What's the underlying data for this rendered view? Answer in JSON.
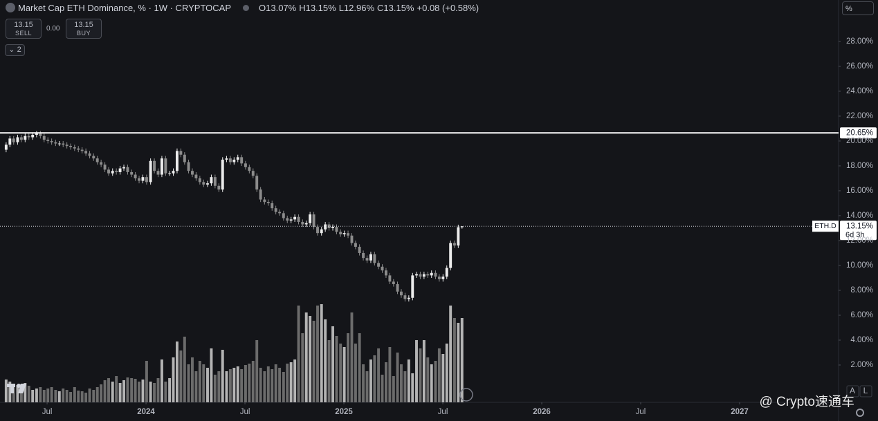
{
  "chart_data": {
    "type": "candlestick",
    "title": "Market Cap ETH Dominance, % · 1W · CRYPTOCAP",
    "ohlc": [
      "O13.07%",
      "H13.15%",
      "L12.96%",
      "C13.15%",
      "+0.08 (+0.58%)"
    ],
    "sell_price": "13.15",
    "sell_label": "SELL",
    "spread": "0.00",
    "buy_price": "13.15",
    "buy_label": "BUY",
    "indicators_count": "2",
    "scale_mode": "%",
    "scale_buttons": [
      "A",
      "L"
    ],
    "watermark": "@ Crypto速通车",
    "up_color": "#ececec",
    "down_color": "#8c8c8c",
    "volume_up_color": "#b4b4b4",
    "volume_down_color": "#6c6c6c",
    "xlim": [
      2023.262,
      2027.5
    ],
    "ylim": [
      -1.0,
      31.33
    ],
    "xticks": [
      {
        "value": 2023.5,
        "label": "Jul"
      },
      2024,
      {
        "value": 2024.5,
        "label": "Jul"
      },
      2025,
      {
        "value": 2025.5,
        "label": "Jul"
      },
      2026,
      {
        "value": 2026.5,
        "label": "Jul"
      },
      2027
    ],
    "yticks": [
      {
        "value": 2,
        "label": "2.00%"
      },
      {
        "value": 4,
        "label": "4.00%"
      },
      {
        "value": 6,
        "label": "6.00%"
      },
      {
        "value": 8,
        "label": "8.00%"
      },
      {
        "value": 10,
        "label": "10.00%"
      },
      {
        "value": 12,
        "label": "12.00%"
      },
      {
        "value": 14,
        "label": "14.00%"
      },
      {
        "value": 16,
        "label": "16.00%"
      },
      {
        "value": 18,
        "label": "18.00%"
      },
      {
        "value": 20,
        "label": "20.00%"
      },
      {
        "value": 22,
        "label": "22.00%"
      },
      {
        "value": 24,
        "label": "24.00%"
      },
      {
        "value": 26,
        "label": "26.00%"
      },
      {
        "value": 28,
        "label": "28.00%"
      }
    ],
    "hlines": [
      {
        "value": 20.65,
        "label": "20.65%",
        "color": "#ffffff"
      }
    ],
    "last": {
      "symbol": "ETH.D",
      "value": 13.15,
      "label": "13.15%",
      "countdown": "6d 3h"
    },
    "x": [
      2023.293,
      2023.312,
      2023.331,
      2023.351,
      2023.37,
      2023.389,
      2023.408,
      2023.427,
      2023.447,
      2023.466,
      2023.485,
      2023.504,
      2023.523,
      2023.543,
      2023.562,
      2023.581,
      2023.6,
      2023.619,
      2023.639,
      2023.658,
      2023.677,
      2023.696,
      2023.715,
      2023.735,
      2023.754,
      2023.773,
      2023.792,
      2023.811,
      2023.831,
      2023.85,
      2023.869,
      2023.888,
      2023.907,
      2023.927,
      2023.946,
      2023.965,
      2023.984,
      2024.003,
      2024.023,
      2024.042,
      2024.061,
      2024.08,
      2024.099,
      2024.119,
      2024.138,
      2024.157,
      2024.176,
      2024.195,
      2024.215,
      2024.234,
      2024.253,
      2024.272,
      2024.291,
      2024.311,
      2024.33,
      2024.349,
      2024.368,
      2024.387,
      2024.407,
      2024.426,
      2024.445,
      2024.464,
      2024.483,
      2024.503,
      2024.522,
      2024.541,
      2024.56,
      2024.579,
      2024.599,
      2024.618,
      2024.637,
      2024.656,
      2024.675,
      2024.695,
      2024.714,
      2024.733,
      2024.752,
      2024.771,
      2024.791,
      2024.81,
      2024.829,
      2024.848,
      2024.867,
      2024.887,
      2024.906,
      2024.925,
      2024.944,
      2024.963,
      2024.983,
      2025.002,
      2025.021,
      2025.04,
      2025.059,
      2025.079,
      2025.098,
      2025.117,
      2025.136,
      2025.155,
      2025.175,
      2025.194,
      2025.213,
      2025.232,
      2025.251,
      2025.271,
      2025.29,
      2025.309,
      2025.328,
      2025.347,
      2025.367,
      2025.386,
      2025.405,
      2025.424,
      2025.443,
      2025.463,
      2025.482,
      2025.501,
      2025.52,
      2025.539,
      2025.559,
      2025.578,
      2025.597
    ],
    "open": [
      19.3,
      19.7,
      20.2,
      19.9,
      20.3,
      20.1,
      20.4,
      20.3,
      20.5,
      20.6,
      20.4,
      20.1,
      20.0,
      19.9,
      19.8,
      19.8,
      19.7,
      19.6,
      19.5,
      19.4,
      19.3,
      19.2,
      19.0,
      18.8,
      18.6,
      18.3,
      18.1,
      17.7,
      17.4,
      17.6,
      17.5,
      17.8,
      17.9,
      17.5,
      17.3,
      17.0,
      16.8,
      17.1,
      16.7,
      18.4,
      17.6,
      17.3,
      18.6,
      17.4,
      17.4,
      17.6,
      19.2,
      18.9,
      18.3,
      17.6,
      17.3,
      17.0,
      16.7,
      16.5,
      16.6,
      17.1,
      16.4,
      16.1,
      18.5,
      18.6,
      18.3,
      18.5,
      18.7,
      18.2,
      17.9,
      17.6,
      17.2,
      16.1,
      15.3,
      15.1,
      15.0,
      14.6,
      14.3,
      14.2,
      13.8,
      13.6,
      13.7,
      13.9,
      13.5,
      13.3,
      13.4,
      14.1,
      13.1,
      12.6,
      12.9,
      13.3,
      13.0,
      13.1,
      12.7,
      12.5,
      12.6,
      12.4,
      11.8,
      11.5,
      11.0,
      10.6,
      10.4,
      10.9,
      10.2,
      9.9,
      9.6,
      9.2,
      8.7,
      8.5,
      7.9,
      7.6,
      7.3,
      7.4,
      9.2,
      9.3,
      9.1,
      9.3,
      9.2,
      9.4,
      9.1,
      8.9,
      9.1,
      9.8,
      11.8,
      11.6,
      13.07
    ],
    "high": [
      19.9,
      20.4,
      20.4,
      20.5,
      20.5,
      20.6,
      20.6,
      20.7,
      20.8,
      20.8,
      20.6,
      20.3,
      20.2,
      20.1,
      20.0,
      20.0,
      19.9,
      19.8,
      19.7,
      19.6,
      19.5,
      19.4,
      19.2,
      19.0,
      18.8,
      18.5,
      18.3,
      17.9,
      17.8,
      17.8,
      18.0,
      18.1,
      18.1,
      17.7,
      17.5,
      17.2,
      17.3,
      17.3,
      18.6,
      18.6,
      17.8,
      18.8,
      18.8,
      17.6,
      17.8,
      19.4,
      19.4,
      19.1,
      18.5,
      17.8,
      17.5,
      17.2,
      16.9,
      16.8,
      17.3,
      17.3,
      16.6,
      18.7,
      18.8,
      18.8,
      18.7,
      18.9,
      18.9,
      18.4,
      18.1,
      17.8,
      17.4,
      16.3,
      15.5,
      15.3,
      15.2,
      14.8,
      14.5,
      14.4,
      14.0,
      13.9,
      14.1,
      14.1,
      13.7,
      13.6,
      14.3,
      14.3,
      13.3,
      13.1,
      13.5,
      13.5,
      13.3,
      13.3,
      12.9,
      12.8,
      12.8,
      12.6,
      12.0,
      11.7,
      11.2,
      10.8,
      11.1,
      11.1,
      10.4,
      10.1,
      9.8,
      9.4,
      8.9,
      8.7,
      8.1,
      7.8,
      7.6,
      9.4,
      9.5,
      9.5,
      9.5,
      9.5,
      9.6,
      9.6,
      9.3,
      9.3,
      10.0,
      12.0,
      12.0,
      13.27,
      13.15
    ],
    "low": [
      19.1,
      19.5,
      19.7,
      19.7,
      19.9,
      19.9,
      20.1,
      20.1,
      20.3,
      20.2,
      19.9,
      19.8,
      19.7,
      19.6,
      19.6,
      19.5,
      19.4,
      19.3,
      19.2,
      19.1,
      19.0,
      18.8,
      18.6,
      18.4,
      18.1,
      17.9,
      17.5,
      17.2,
      17.2,
      17.3,
      17.3,
      17.6,
      17.3,
      17.1,
      16.8,
      16.6,
      16.6,
      16.5,
      16.5,
      17.4,
      17.1,
      17.1,
      17.2,
      17.2,
      17.2,
      17.4,
      18.7,
      18.1,
      17.4,
      17.1,
      16.8,
      16.5,
      16.3,
      16.3,
      16.4,
      16.2,
      15.9,
      15.9,
      18.3,
      18.1,
      18.1,
      18.3,
      18.0,
      17.7,
      17.4,
      17.0,
      15.9,
      15.1,
      14.9,
      14.8,
      14.4,
      14.1,
      14.0,
      13.6,
      13.4,
      13.4,
      13.5,
      13.3,
      13.1,
      13.1,
      13.2,
      12.9,
      12.4,
      12.4,
      12.7,
      12.8,
      12.8,
      12.5,
      12.3,
      12.3,
      12.2,
      11.6,
      11.3,
      10.8,
      10.4,
      10.2,
      10.2,
      10.0,
      9.7,
      9.4,
      9.0,
      8.5,
      8.3,
      7.7,
      7.4,
      7.1,
      7.1,
      7.2,
      9.0,
      8.9,
      8.9,
      9.0,
      9.0,
      8.9,
      8.7,
      8.7,
      8.9,
      9.6,
      11.4,
      11.4,
      12.96
    ],
    "close": [
      19.7,
      20.2,
      19.9,
      20.3,
      20.1,
      20.4,
      20.3,
      20.5,
      20.6,
      20.4,
      20.1,
      20.0,
      19.9,
      19.8,
      19.8,
      19.7,
      19.6,
      19.5,
      19.4,
      19.3,
      19.2,
      19.0,
      18.8,
      18.6,
      18.3,
      18.1,
      17.7,
      17.4,
      17.6,
      17.5,
      17.8,
      17.9,
      17.5,
      17.3,
      17.0,
      16.8,
      17.1,
      16.7,
      18.4,
      17.6,
      17.3,
      18.6,
      17.4,
      17.4,
      17.6,
      19.2,
      18.9,
      18.3,
      17.6,
      17.3,
      17.0,
      16.7,
      16.5,
      16.6,
      17.1,
      16.4,
      16.1,
      18.5,
      18.6,
      18.3,
      18.5,
      18.7,
      18.2,
      17.9,
      17.6,
      17.2,
      16.1,
      15.3,
      15.1,
      15.0,
      14.6,
      14.3,
      14.2,
      13.8,
      13.6,
      13.7,
      13.9,
      13.5,
      13.3,
      13.4,
      14.1,
      13.1,
      12.6,
      12.9,
      13.3,
      13.0,
      13.1,
      12.7,
      12.5,
      12.6,
      12.4,
      11.8,
      11.5,
      11.0,
      10.6,
      10.4,
      10.9,
      10.2,
      9.9,
      9.6,
      9.2,
      8.7,
      8.5,
      7.9,
      7.6,
      7.3,
      7.4,
      9.2,
      9.3,
      9.1,
      9.3,
      9.2,
      9.4,
      9.1,
      8.9,
      9.1,
      9.8,
      11.8,
      11.6,
      13.07,
      13.15
    ],
    "volume": [
      33,
      30,
      22,
      25,
      26,
      28,
      24,
      18,
      20,
      22,
      18,
      20,
      22,
      18,
      16,
      20,
      18,
      15,
      22,
      17,
      16,
      14,
      20,
      18,
      22,
      26,
      32,
      35,
      30,
      38,
      28,
      32,
      36,
      35,
      34,
      30,
      33,
      60,
      30,
      28,
      35,
      62,
      30,
      35,
      65,
      88,
      75,
      95,
      55,
      65,
      45,
      60,
      55,
      50,
      78,
      40,
      45,
      76,
      45,
      48,
      50,
      52,
      48,
      54,
      56,
      60,
      90,
      50,
      45,
      52,
      48,
      55,
      50,
      44,
      56,
      58,
      62,
      140,
      100,
      130,
      125,
      118,
      140,
      142,
      120,
      90,
      110,
      96,
      85,
      80,
      100,
      130,
      85,
      100,
      55,
      45,
      62,
      68,
      78,
      40,
      58,
      80,
      38,
      72,
      55,
      45,
      62,
      42,
      90,
      78,
      90,
      65,
      55,
      60,
      78,
      70,
      85,
      140,
      122,
      115,
      122
    ]
  }
}
